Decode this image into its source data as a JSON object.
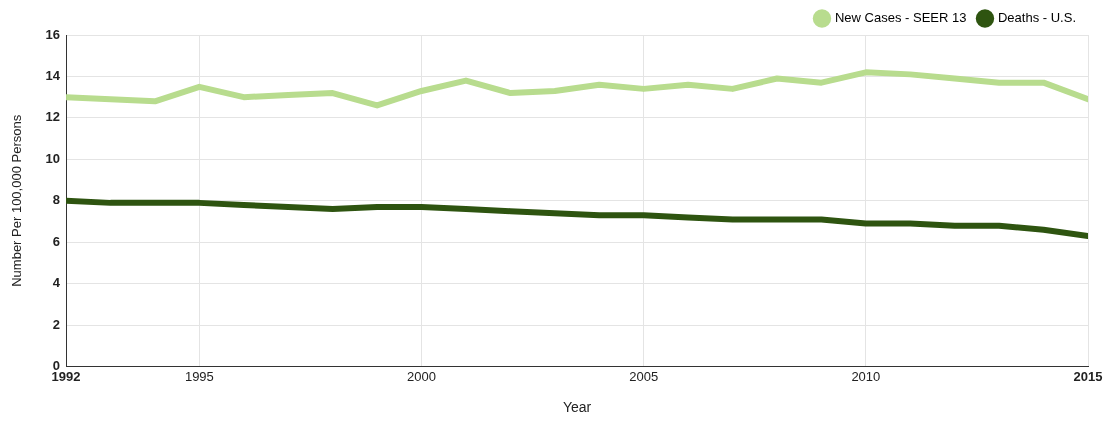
{
  "chart_data": {
    "type": "line",
    "xlabel": "Year",
    "ylabel": "Number Per 100,000 Persons",
    "x": [
      1992,
      1993,
      1994,
      1995,
      1996,
      1997,
      1998,
      1999,
      2000,
      2001,
      2002,
      2003,
      2004,
      2005,
      2006,
      2007,
      2008,
      2009,
      2010,
      2011,
      2012,
      2013,
      2014,
      2015
    ],
    "series": [
      {
        "name": "New Cases - SEER 13",
        "color": "#b8dc8e",
        "values": [
          13.0,
          12.9,
          12.8,
          13.5,
          13.0,
          13.1,
          13.2,
          12.6,
          13.3,
          13.8,
          13.2,
          13.3,
          13.6,
          13.4,
          13.6,
          13.4,
          13.9,
          13.7,
          14.2,
          14.1,
          13.9,
          13.7,
          13.7,
          12.9
        ]
      },
      {
        "name": "Deaths - U.S.",
        "color": "#2e5410",
        "values": [
          8.0,
          7.9,
          7.9,
          7.9,
          7.8,
          7.7,
          7.6,
          7.7,
          7.7,
          7.6,
          7.5,
          7.4,
          7.3,
          7.3,
          7.2,
          7.1,
          7.1,
          7.1,
          6.9,
          6.9,
          6.8,
          6.8,
          6.6,
          6.3
        ]
      }
    ],
    "xlim": [
      1992,
      2015
    ],
    "xticks": [
      1992,
      1995,
      2000,
      2005,
      2010,
      2015
    ],
    "ylim": [
      0,
      16
    ],
    "yticks": [
      0,
      2,
      4,
      6,
      8,
      10,
      12,
      14,
      16
    ],
    "grid": true,
    "legend": "top right",
    "marker": "none",
    "line_style": "solid"
  }
}
